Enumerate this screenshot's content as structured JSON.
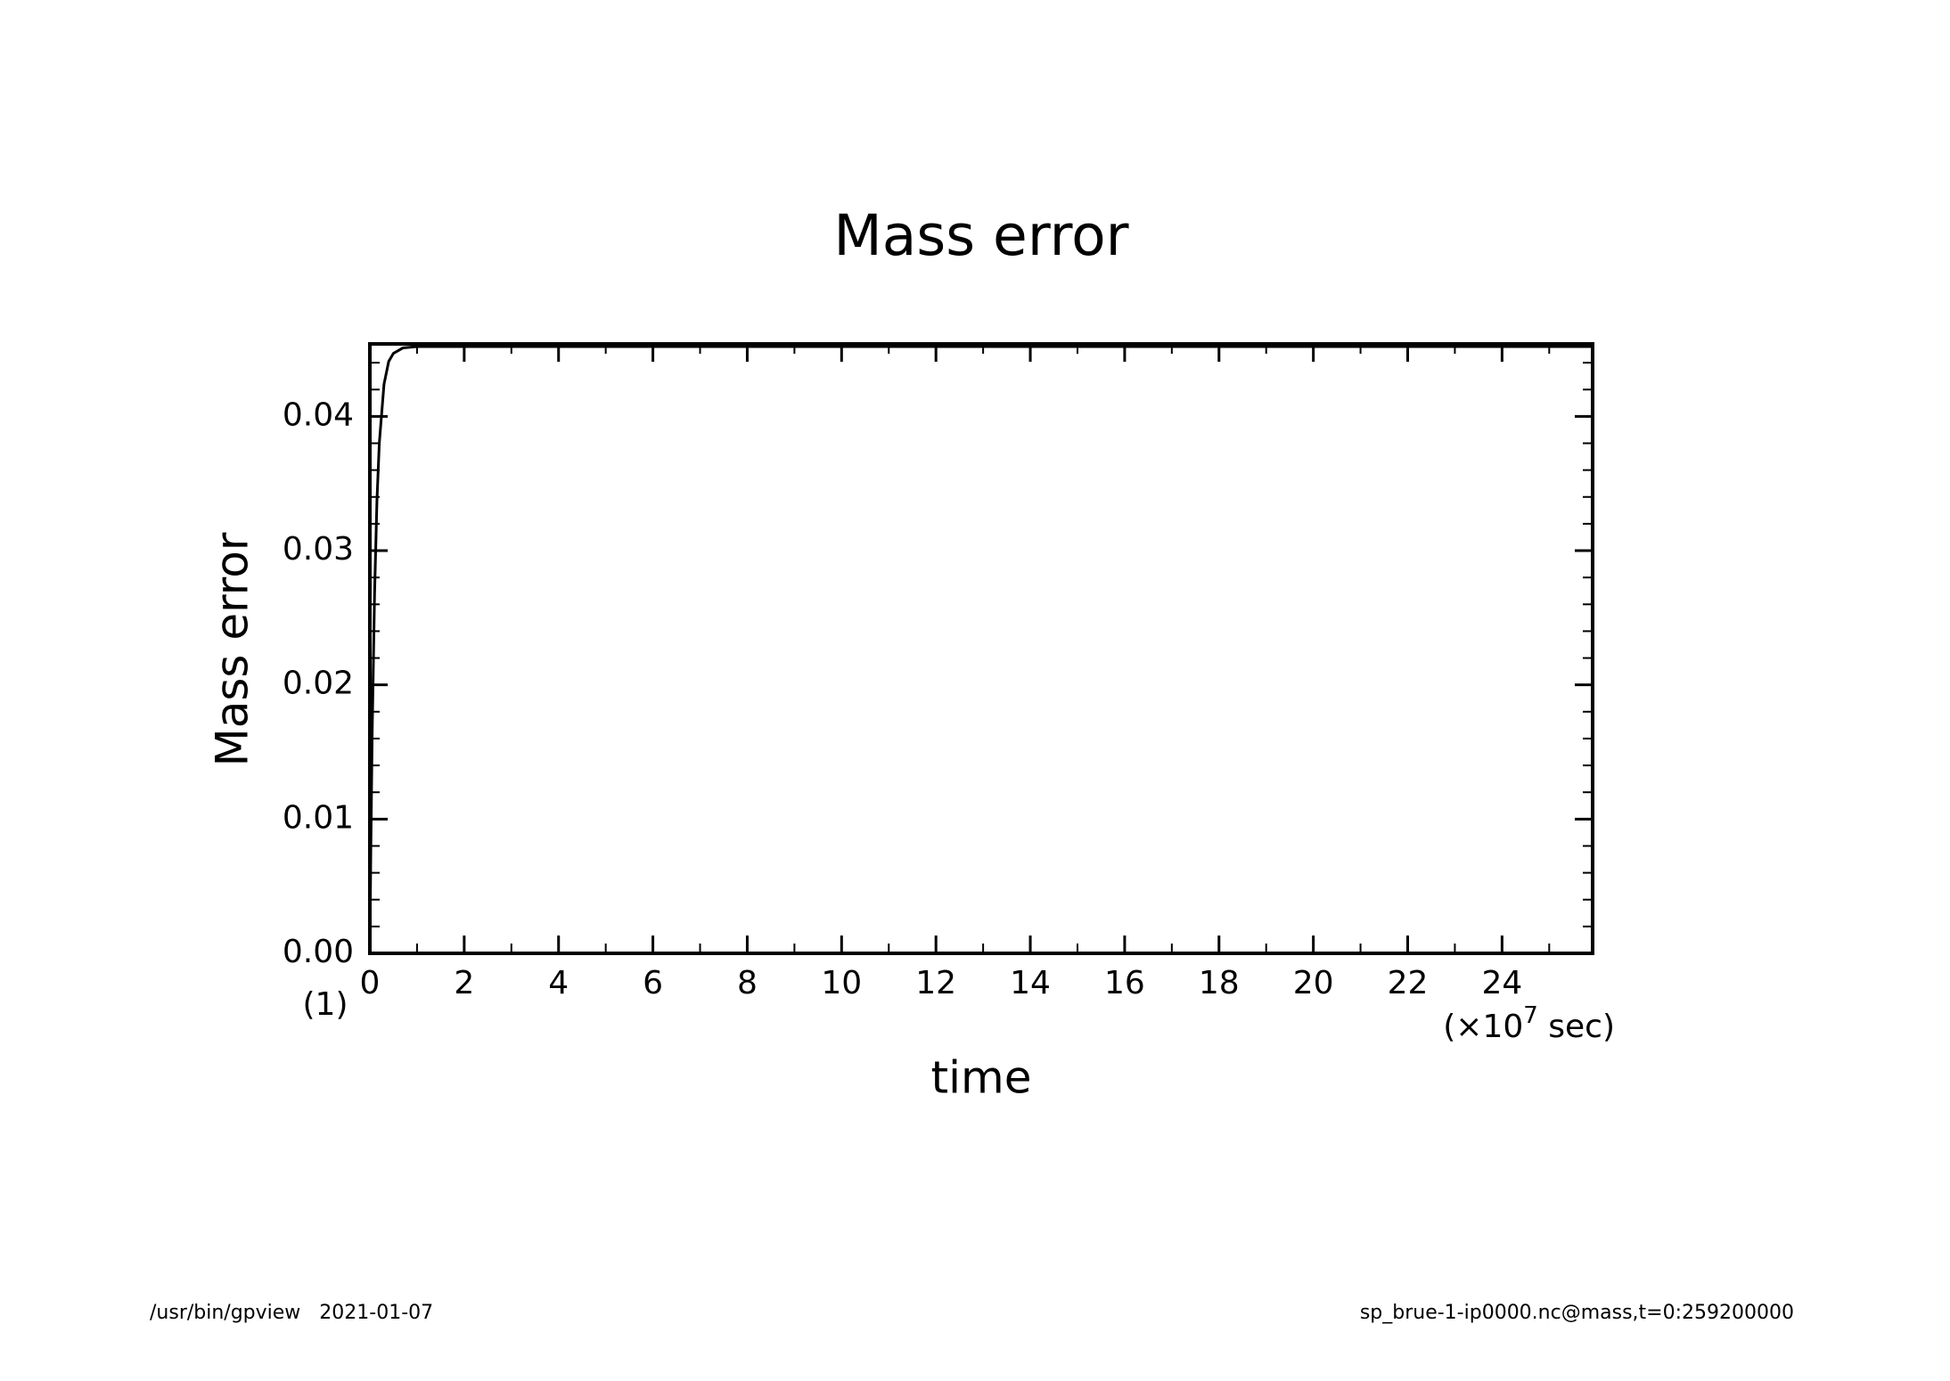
{
  "chart_data": {
    "type": "line",
    "title": "Mass error",
    "x_label": "time",
    "y_label": "Mass error",
    "x_unit": {
      "prefix": "(×10",
      "exponent": "7",
      "suffix": " sec)"
    },
    "panel_label": "(1)",
    "x": [
      0,
      0.02,
      0.05,
      0.1,
      0.15,
      0.2,
      0.3,
      0.4,
      0.5,
      0.7,
      1,
      1.5,
      2,
      5,
      10,
      15,
      20,
      25.92
    ],
    "series": [
      {
        "name": "Mass error",
        "color": "#000000",
        "values": [
          0,
          0.0076,
          0.0166,
          0.0268,
          0.0337,
          0.038,
          0.0424,
          0.0441,
          0.0447,
          0.0451,
          0.0452,
          0.0452,
          0.0452,
          0.0452,
          0.0452,
          0.0452,
          0.0452,
          0.0452
        ]
      }
    ],
    "xlim": [
      0,
      25.92
    ],
    "ylim": [
      0,
      0.0454
    ],
    "xticks": [
      0,
      2,
      4,
      6,
      8,
      10,
      12,
      14,
      16,
      18,
      20,
      22,
      24
    ],
    "xminorticks": [
      1,
      3,
      5,
      7,
      9,
      11,
      13,
      15,
      17,
      19,
      21,
      23,
      25
    ],
    "yticks": [
      {
        "value": 0,
        "label": "0.00"
      },
      {
        "value": 0.01,
        "label": "0.01"
      },
      {
        "value": 0.02,
        "label": "0.02"
      },
      {
        "value": 0.03,
        "label": "0.03"
      },
      {
        "value": 0.04,
        "label": "0.04"
      }
    ],
    "yminorticks": [
      0.002,
      0.004,
      0.006,
      0.008,
      0.012,
      0.014,
      0.016,
      0.018,
      0.022,
      0.024,
      0.026,
      0.028,
      0.032,
      0.034,
      0.036,
      0.038,
      0.042,
      0.044
    ]
  },
  "footer": {
    "left": "/usr/bin/gpview   2021-01-07",
    "right": "sp_brue-1-ip0000.nc@mass,t=0:259200000"
  }
}
